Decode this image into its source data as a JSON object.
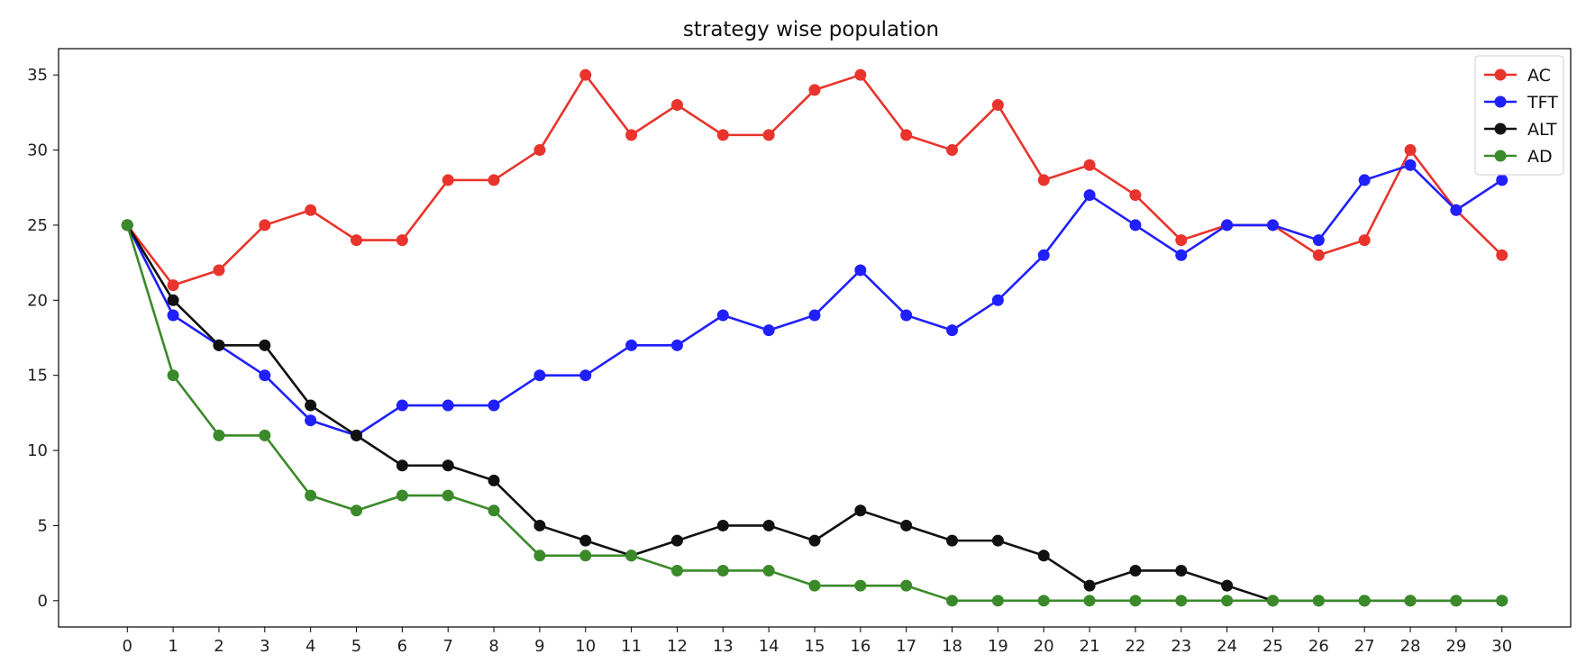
{
  "chart_data": {
    "type": "line",
    "title": "strategy wise population",
    "xlabel": "",
    "ylabel": "",
    "x": [
      0,
      1,
      2,
      3,
      4,
      5,
      6,
      7,
      8,
      9,
      10,
      11,
      12,
      13,
      14,
      15,
      16,
      17,
      18,
      19,
      20,
      21,
      22,
      23,
      24,
      25,
      26,
      27,
      28,
      29,
      30
    ],
    "xlim": [
      -1.5,
      31.5
    ],
    "ylim": [
      -1.75,
      36.75
    ],
    "yticks": [
      0,
      5,
      10,
      15,
      20,
      25,
      30,
      35
    ],
    "grid": false,
    "legend_position": "top-right",
    "marker": "circle",
    "series": [
      {
        "name": "AC",
        "color": "#e8342c",
        "values": [
          25,
          21,
          22,
          25,
          26,
          24,
          24,
          28,
          28,
          30,
          35,
          31,
          33,
          31,
          31,
          34,
          35,
          31,
          30,
          33,
          28,
          29,
          27,
          24,
          25,
          25,
          23,
          24,
          30,
          26,
          23
        ]
      },
      {
        "name": "TFT",
        "color": "#1f1fff",
        "values": [
          25,
          19,
          17,
          15,
          12,
          11,
          13,
          13,
          13,
          15,
          15,
          17,
          17,
          19,
          18,
          19,
          22,
          19,
          18,
          20,
          23,
          27,
          25,
          23,
          25,
          25,
          24,
          28,
          29,
          26,
          28
        ]
      },
      {
        "name": "ALT",
        "color": "#111111",
        "values": [
          25,
          20,
          17,
          17,
          13,
          11,
          9,
          9,
          8,
          5,
          4,
          3,
          4,
          5,
          5,
          4,
          6,
          5,
          4,
          4,
          3,
          1,
          2,
          2,
          1,
          0,
          0,
          0,
          0,
          0,
          0
        ]
      },
      {
        "name": "AD",
        "color": "#3a8a2a",
        "values": [
          25,
          15,
          11,
          11,
          7,
          6,
          7,
          7,
          6,
          3,
          3,
          3,
          2,
          2,
          2,
          1,
          1,
          1,
          0,
          0,
          0,
          0,
          0,
          0,
          0,
          0,
          0,
          0,
          0,
          0,
          0
        ]
      }
    ]
  }
}
